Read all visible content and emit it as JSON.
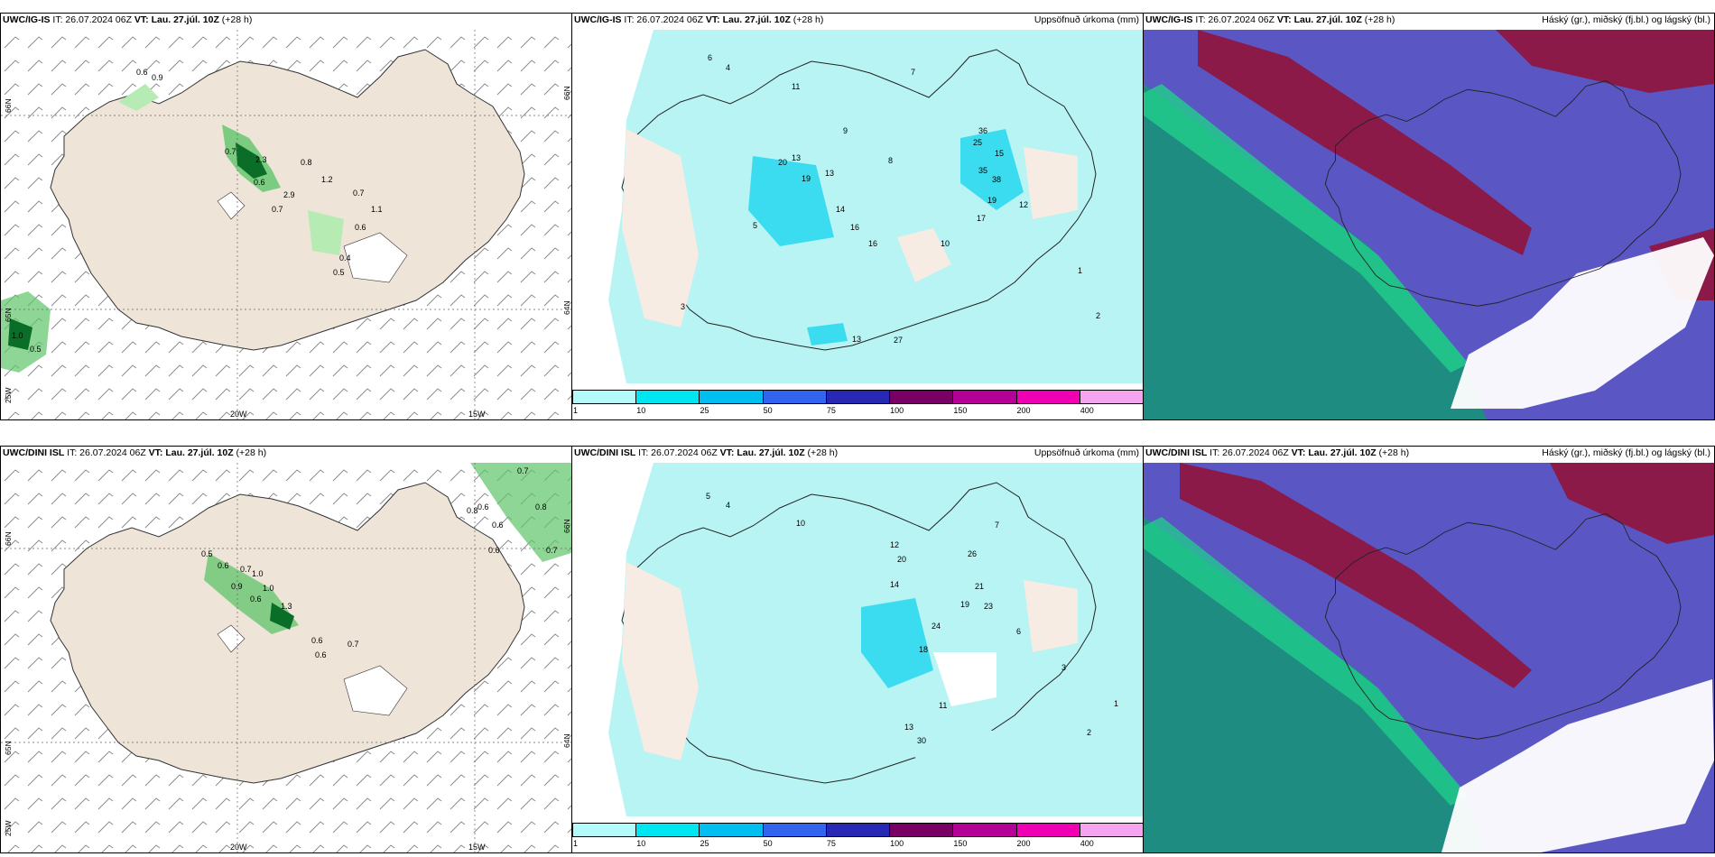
{
  "panels": {
    "tl": {
      "model": "UWC/IG-IS",
      "it": "IT: 26.07.2024 06Z",
      "vt": "VT: Lau. 27.júl. 10Z",
      "lead": "(+28 h)",
      "values": [
        "0.6",
        "0.9",
        "0.7",
        "2.3",
        "0.8",
        "0.6",
        "1.2",
        "2.9",
        "0.7",
        "0.7",
        "1.1",
        "0.6",
        "0.4",
        "0.5",
        "1.0",
        "0.5"
      ],
      "lat_labels": [
        "66N",
        "65N",
        "25W"
      ],
      "lon_labels": [
        "20W",
        "15W"
      ],
      "right_labels": [
        "66N",
        "64N"
      ]
    },
    "tm": {
      "model": "UWC/IG-IS",
      "it": "IT: 26.07.2024 06Z",
      "vt": "VT: Lau. 27.júl. 10Z",
      "lead": "(+28 h)",
      "field": "Uppsöfnuð úrkoma (mm)",
      "values": [
        "6",
        "4",
        "11",
        "13",
        "20",
        "19",
        "13",
        "14",
        "16",
        "9",
        "36",
        "25",
        "35",
        "38",
        "15",
        "19",
        "17",
        "12",
        "27",
        "16",
        "10",
        "13",
        "8",
        "7",
        "5",
        "3",
        "2",
        "1"
      ]
    },
    "tr": {
      "model": "UWC/IG-IS",
      "it": "IT: 26.07.2024 06Z",
      "vt": "VT: Lau. 27.júl. 10Z",
      "lead": "(+28 h)",
      "field": "Háský (gr.), miðský (fj.bl.) og lágský (bl.)"
    },
    "bl": {
      "model": "UWC/DINI ISL",
      "it": "IT: 26.07.2024 06Z",
      "vt": "VT: Lau. 27.júl. 10Z",
      "lead": "(+28 h)",
      "values": [
        "0.7",
        "0.8",
        "0.6",
        "0.8",
        "0.5",
        "0.6",
        "0.7",
        "0.6",
        "1.0",
        "0.9",
        "1.0",
        "0.6",
        "1.3",
        "0.6",
        "0.6",
        "0.7",
        "0.6",
        "0.7"
      ],
      "lat_labels": [
        "66N",
        "65N",
        "25W"
      ],
      "lon_labels": [
        "20W",
        "15W"
      ],
      "right_labels": [
        "66N",
        "64N"
      ]
    },
    "bm": {
      "model": "UWC/DINI ISL",
      "it": "IT: 26.07.2024 06Z",
      "vt": "VT: Lau. 27.júl. 10Z",
      "lead": "(+28 h)",
      "field": "Uppsöfnuð úrkoma (mm)",
      "values": [
        "5",
        "4",
        "10",
        "12",
        "14",
        "20",
        "26",
        "21",
        "19",
        "23",
        "24",
        "18",
        "30",
        "13",
        "11",
        "7",
        "6",
        "3",
        "2",
        "1"
      ]
    },
    "br": {
      "model": "UWC/DINI ISL",
      "it": "IT: 26.07.2024 06Z",
      "vt": "VT: Lau. 27.júl. 10Z",
      "lead": "(+28 h)",
      "field": "Háský (gr.), miðský (fj.bl.) og lágský (bl.)"
    }
  },
  "precip_scale": {
    "labels": [
      "1",
      "10",
      "25",
      "50",
      "75",
      "100",
      "150",
      "200",
      "400"
    ],
    "colors": [
      "#b4fafa",
      "#00e6f0",
      "#00bef0",
      "#3264f0",
      "#2828b4",
      "#780064",
      "#b40096",
      "#f000b4",
      "#f5a5f0"
    ]
  },
  "colors": {
    "land": "#efe4d8",
    "land_pale": "#f7ece4",
    "precip_light": "#b8f4f4",
    "precip_mid": "#3cdcf0",
    "green_light": "#b6ecb4",
    "green_mid": "#5ec46a",
    "green_dark": "#0a6e28",
    "cloud_high": "#8b1a48",
    "cloud_mid": "#5a56c4",
    "cloud_low": "#1e8c80"
  }
}
